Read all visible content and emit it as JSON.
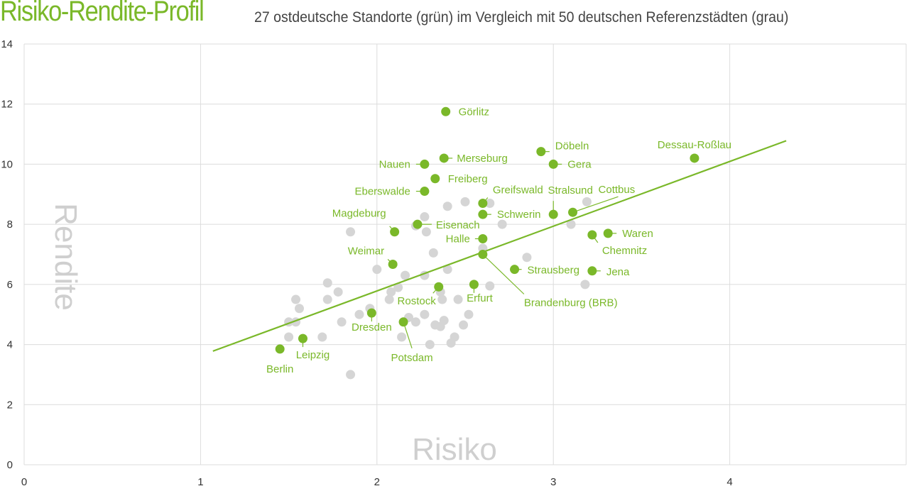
{
  "title": "Risiko-Rendite-Profil",
  "subtitle": "27 ostdeutsche Standorte (grün) im Vergleich mit 50 deutschen Referenzstädten (grau)",
  "colors": {
    "east": "#7ab829",
    "reference": "#d5d5d5",
    "trend": "#7ab829",
    "grid": "#dcdcdc"
  },
  "chart_data": {
    "type": "scatter",
    "xlabel": "Risiko",
    "ylabel": "Rendite",
    "xlim": [
      0,
      5
    ],
    "ylim": [
      0,
      14
    ],
    "xticks": [
      0,
      1,
      2,
      3,
      4
    ],
    "yticks": [
      0,
      2,
      4,
      6,
      8,
      10,
      12,
      14
    ],
    "grid": true,
    "trendline": {
      "x": [
        1.07,
        4.32
      ],
      "y": [
        3.78,
        10.78
      ]
    },
    "east": [
      {
        "label": "Görlitz",
        "x": 2.39,
        "y": 11.75
      },
      {
        "label": "Dessau-Roßlau",
        "x": 3.8,
        "y": 10.2
      },
      {
        "label": "Döbeln",
        "x": 2.93,
        "y": 10.42
      },
      {
        "label": "Merseburg",
        "x": 2.38,
        "y": 10.2
      },
      {
        "label": "Nauen",
        "x": 2.27,
        "y": 10.0
      },
      {
        "label": "Gera",
        "x": 3.0,
        "y": 10.0
      },
      {
        "label": "Freiberg",
        "x": 2.33,
        "y": 9.52
      },
      {
        "label": "Eberswalde",
        "x": 2.27,
        "y": 9.1
      },
      {
        "label": "Greifswald",
        "x": 2.6,
        "y": 8.7
      },
      {
        "label": "Schwerin",
        "x": 2.6,
        "y": 8.33
      },
      {
        "label": "Stralsund",
        "x": 3.0,
        "y": 8.33
      },
      {
        "label": "Cottbus",
        "x": 3.11,
        "y": 8.4
      },
      {
        "label": "Magdeburg",
        "x": 2.1,
        "y": 7.75
      },
      {
        "label": "Eisenach",
        "x": 2.23,
        "y": 8.0
      },
      {
        "label": "Halle",
        "x": 2.6,
        "y": 7.52
      },
      {
        "label": "Waren",
        "x": 3.31,
        "y": 7.7
      },
      {
        "label": "Chemnitz",
        "x": 3.22,
        "y": 7.65
      },
      {
        "label": "Weimar",
        "x": 2.09,
        "y": 6.67
      },
      {
        "label": "Brandenburg (BRB)",
        "x": 2.6,
        "y": 7.0
      },
      {
        "label": "Strausberg",
        "x": 2.78,
        "y": 6.5
      },
      {
        "label": "Jena",
        "x": 3.22,
        "y": 6.45
      },
      {
        "label": "Rostock",
        "x": 2.35,
        "y": 5.92
      },
      {
        "label": "Erfurt",
        "x": 2.55,
        "y": 6.0
      },
      {
        "label": "Dresden",
        "x": 1.97,
        "y": 5.05
      },
      {
        "label": "Potsdam",
        "x": 2.15,
        "y": 4.75
      },
      {
        "label": "Leipzig",
        "x": 1.58,
        "y": 4.2
      },
      {
        "label": "Berlin",
        "x": 1.45,
        "y": 3.85
      }
    ],
    "reference": [
      [
        1.85,
        3.0
      ],
      [
        1.5,
        4.25
      ],
      [
        1.69,
        4.25
      ],
      [
        1.5,
        4.75
      ],
      [
        1.54,
        4.75
      ],
      [
        1.56,
        5.2
      ],
      [
        1.54,
        5.5
      ],
      [
        1.72,
        5.5
      ],
      [
        1.78,
        5.75
      ],
      [
        1.72,
        6.05
      ],
      [
        1.8,
        4.75
      ],
      [
        1.9,
        5.0
      ],
      [
        1.96,
        5.2
      ],
      [
        2.0,
        6.5
      ],
      [
        2.07,
        5.5
      ],
      [
        2.08,
        5.75
      ],
      [
        2.12,
        5.9
      ],
      [
        2.16,
        6.3
      ],
      [
        2.14,
        4.25
      ],
      [
        2.18,
        4.9
      ],
      [
        2.22,
        4.75
      ],
      [
        2.27,
        5.0
      ],
      [
        2.3,
        4.0
      ],
      [
        2.33,
        4.65
      ],
      [
        2.36,
        4.6
      ],
      [
        2.38,
        4.8
      ],
      [
        2.42,
        4.05
      ],
      [
        2.44,
        4.25
      ],
      [
        2.49,
        4.65
      ],
      [
        2.52,
        5.0
      ],
      [
        2.46,
        5.5
      ],
      [
        2.36,
        5.75
      ],
      [
        2.37,
        5.5
      ],
      [
        2.27,
        6.3
      ],
      [
        2.32,
        7.05
      ],
      [
        2.28,
        7.75
      ],
      [
        2.27,
        8.25
      ],
      [
        2.4,
        8.6
      ],
      [
        2.5,
        8.75
      ],
      [
        2.64,
        8.7
      ],
      [
        2.64,
        5.95
      ],
      [
        2.4,
        6.5
      ],
      [
        2.6,
        7.2
      ],
      [
        2.71,
        8.0
      ],
      [
        2.85,
        6.9
      ],
      [
        3.1,
        8.0
      ],
      [
        3.19,
        8.75
      ],
      [
        3.18,
        6.0
      ],
      [
        1.85,
        7.75
      ],
      [
        2.22,
        7.95
      ]
    ]
  }
}
